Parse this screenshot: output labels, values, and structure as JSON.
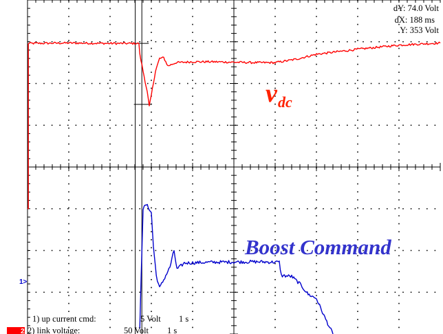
{
  "readout": {
    "dy": "dY: 74.0 Volt",
    "dx": "dX: 188 ms",
    "y": "Y: 353 Volt"
  },
  "channels": [
    {
      "label": "1) up current cmd:",
      "scale": "5 Volt",
      "time": "1 s"
    },
    {
      "label": "2) link voltage:",
      "scale": "50 Volt",
      "time": "1 s"
    }
  ],
  "annotations": {
    "vdc_main": "v",
    "vdc_sub": "dc",
    "boost": "Boost Command"
  },
  "markers": {
    "ch1": "1>",
    "ch2": "2"
  },
  "colors": {
    "vdc_trace": "#ff0000",
    "boost_trace": "#0000cc",
    "annotation_vdc": "#ff2200",
    "annotation_boost": "#3333cc",
    "marker_bg": "#ff0000",
    "grid": "#000000"
  },
  "chart_data": {
    "type": "line",
    "grid": true,
    "divisions": {
      "x": 10,
      "y": 8
    },
    "x_unit": "division",
    "series": [
      {
        "name": "link voltage",
        "color": "#ff0000",
        "points": [
          [
            0,
            -1.0
          ],
          [
            0.02,
            -1.0
          ],
          [
            0.02,
            2.96
          ],
          [
            1.0,
            2.97
          ],
          [
            2.0,
            2.96
          ],
          [
            2.7,
            2.96
          ],
          [
            2.72,
            2.7
          ],
          [
            2.8,
            2.3
          ],
          [
            2.9,
            1.8
          ],
          [
            2.95,
            1.45
          ],
          [
            3.0,
            1.72
          ],
          [
            3.1,
            2.3
          ],
          [
            3.2,
            2.6
          ],
          [
            3.3,
            2.62
          ],
          [
            3.4,
            2.42
          ],
          [
            3.6,
            2.5
          ],
          [
            4.0,
            2.52
          ],
          [
            4.5,
            2.52
          ],
          [
            5.0,
            2.51
          ],
          [
            5.5,
            2.5
          ],
          [
            6.0,
            2.5
          ],
          [
            6.5,
            2.58
          ],
          [
            7.0,
            2.7
          ],
          [
            8.0,
            2.82
          ],
          [
            9.0,
            2.92
          ],
          [
            10.0,
            2.97
          ]
        ],
        "noise": 0.025
      },
      {
        "name": "up current cmd",
        "color": "#0000cc",
        "points": [
          [
            2.72,
            -3.9
          ],
          [
            2.75,
            -2.7
          ],
          [
            2.8,
            -1.0
          ],
          [
            2.88,
            -0.9
          ],
          [
            2.95,
            -1.0
          ],
          [
            3.0,
            -1.1
          ],
          [
            3.05,
            -1.9
          ],
          [
            3.12,
            -2.6
          ],
          [
            3.2,
            -2.9
          ],
          [
            3.3,
            -2.7
          ],
          [
            3.45,
            -2.4
          ],
          [
            3.55,
            -2.0
          ],
          [
            3.62,
            -2.45
          ],
          [
            3.8,
            -2.3
          ],
          [
            4.5,
            -2.28
          ],
          [
            5.5,
            -2.27
          ],
          [
            6.1,
            -2.28
          ],
          [
            6.15,
            -2.6
          ],
          [
            6.4,
            -2.62
          ],
          [
            6.6,
            -2.8
          ],
          [
            6.8,
            -3.05
          ],
          [
            7.0,
            -3.15
          ],
          [
            7.2,
            -3.6
          ],
          [
            7.4,
            -4.0
          ]
        ],
        "noise": 0.04
      }
    ],
    "cursors": {
      "v1": 2.61,
      "v2": 2.77
    }
  }
}
